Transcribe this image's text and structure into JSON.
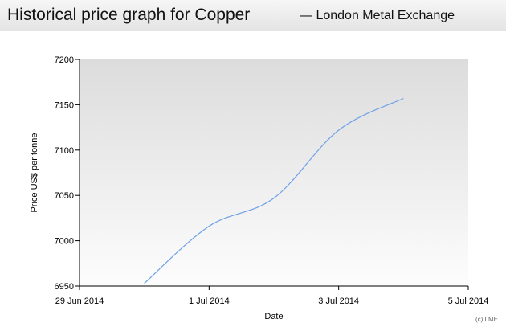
{
  "header": {
    "title": "Historical price graph for Copper",
    "subtitle": "— London Metal Exchange"
  },
  "credit": "(c) LME",
  "chart_data": {
    "type": "line",
    "xlabel": "Date",
    "ylabel": "Price US$ per tonne",
    "x_ticks": [
      "29 Jun 2014",
      "1 Jul 2014",
      "3 Jul 2014",
      "5 Jul 2014"
    ],
    "y_ticks": [
      6950,
      7000,
      7050,
      7100,
      7150,
      7200
    ],
    "xlim": [
      "2014-06-29",
      "2014-07-05"
    ],
    "ylim": [
      6950,
      7200
    ],
    "grid": false,
    "series": [
      {
        "color": "#6ea0e8",
        "x": [
          "2014-06-30",
          "2014-07-01",
          "2014-07-02",
          "2014-07-03",
          "2014-07-04"
        ],
        "values": [
          6953,
          7016,
          7047,
          7122,
          7157
        ]
      }
    ]
  }
}
